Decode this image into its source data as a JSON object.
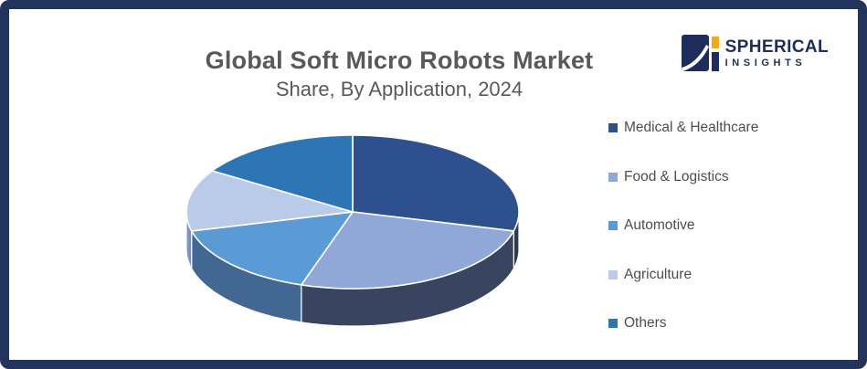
{
  "frame": {
    "border_color": "#23345C",
    "background": "#FFFFFF"
  },
  "header": {
    "title": "Global Soft Micro Robots Market",
    "subtitle": "Share, By Application, 2024",
    "text_color": "#595959"
  },
  "logo": {
    "brand_line1": "SPHERICAL",
    "brand_line2": "INSIGHTS",
    "navy": "#1E2D5C",
    "orange": "#F3A81E"
  },
  "chart_data": {
    "type": "pie",
    "style": "3d",
    "title": "Global Soft Micro Robots Market Share, By Application, 2024",
    "unit": "%",
    "start_angle_deg": 0,
    "direction": "clockwise",
    "legend_position": "right",
    "data_labels_shown": false,
    "slices": [
      {
        "label": "Medical & Healthcare",
        "value": 29,
        "color": "#2F508F",
        "side_color": "#2C3A55"
      },
      {
        "label": "Food & Logistics",
        "value": 26,
        "color": "#8FA8D8",
        "side_color": "#394560"
      },
      {
        "label": "Automotive",
        "value": 16,
        "color": "#5B9BD5",
        "side_color": "#426793"
      },
      {
        "label": "Agriculture",
        "value": 13,
        "color": "#B9CBE9",
        "side_color": "#7E93BB"
      },
      {
        "label": "Others",
        "value": 16,
        "color": "#2E75B6",
        "side_color": "#1F4E79"
      }
    ],
    "legend_text_color": "#4D4D4D"
  }
}
